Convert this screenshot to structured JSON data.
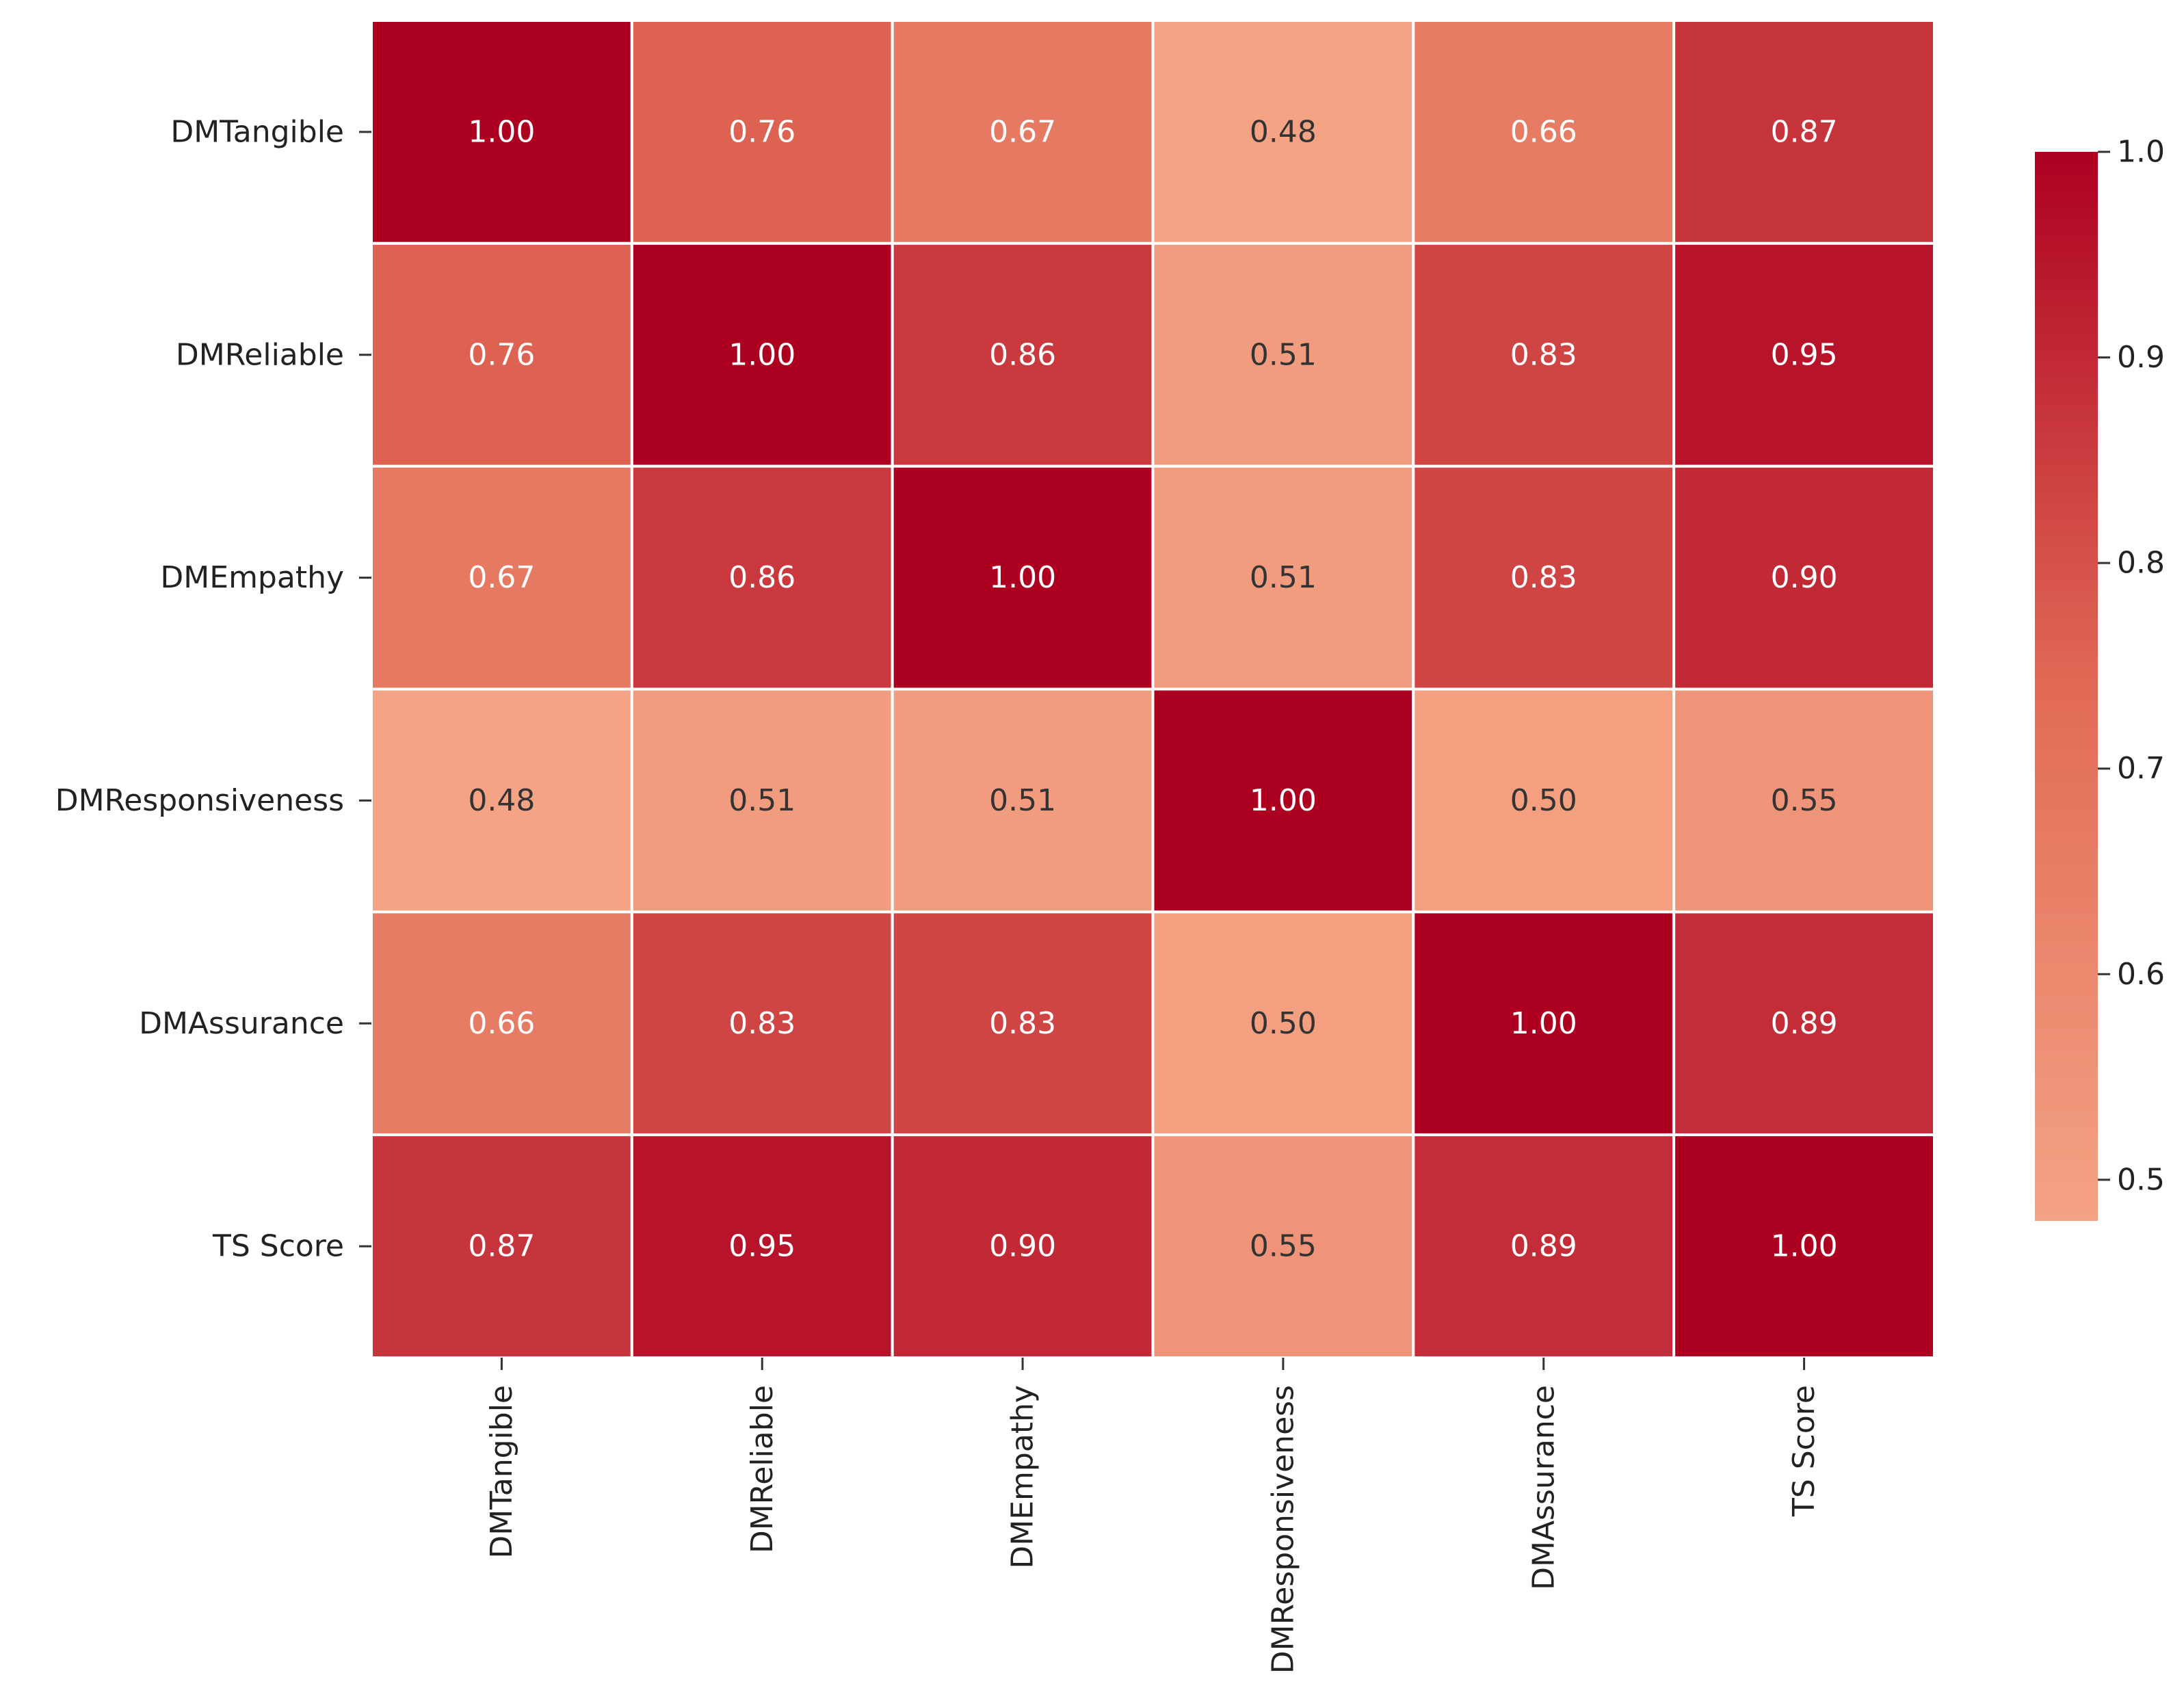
{
  "chart_data": {
    "type": "heatmap",
    "title": "",
    "rows": [
      "DMTangible",
      "DMReliable",
      "DMEmpathy",
      "DMResponsiveness",
      "DMAssurance",
      "TS Score"
    ],
    "columns": [
      "DMTangible",
      "DMReliable",
      "DMEmpathy",
      "DMResponsiveness",
      "DMAssurance",
      "TS Score"
    ],
    "values": [
      [
        1.0,
        0.76,
        0.67,
        0.48,
        0.66,
        0.87
      ],
      [
        0.76,
        1.0,
        0.86,
        0.51,
        0.83,
        0.95
      ],
      [
        0.67,
        0.86,
        1.0,
        0.51,
        0.83,
        0.9
      ],
      [
        0.48,
        0.51,
        0.51,
        1.0,
        0.5,
        0.55
      ],
      [
        0.66,
        0.83,
        0.83,
        0.5,
        1.0,
        0.89
      ],
      [
        0.87,
        0.95,
        0.9,
        0.55,
        0.89,
        1.0
      ]
    ],
    "value_labels": [
      [
        "1.00",
        "0.76",
        "0.67",
        "0.48",
        "0.66",
        "0.87"
      ],
      [
        "0.76",
        "1.00",
        "0.86",
        "0.51",
        "0.83",
        "0.95"
      ],
      [
        "0.67",
        "0.86",
        "1.00",
        "0.51",
        "0.83",
        "0.90"
      ],
      [
        "0.48",
        "0.51",
        "0.51",
        "1.00",
        "0.50",
        "0.55"
      ],
      [
        "0.66",
        "0.83",
        "0.83",
        "0.50",
        "1.00",
        "0.89"
      ],
      [
        "0.87",
        "0.95",
        "0.90",
        "0.55",
        "0.89",
        "1.00"
      ]
    ],
    "colorbar": {
      "range": [
        0.48,
        1.0
      ],
      "ticks": [
        0.5,
        0.6,
        0.7,
        0.8,
        0.9,
        1.0
      ],
      "tick_labels": [
        "0.5",
        "0.6",
        "0.7",
        "0.8",
        "0.9",
        "1.0"
      ],
      "colors": [
        "#f4a384",
        "#e16a56",
        "#ad0021"
      ]
    },
    "text_colors": {
      "dark": "#333333",
      "light": "#ffffff"
    },
    "grid_line_color": "#ffffff"
  }
}
